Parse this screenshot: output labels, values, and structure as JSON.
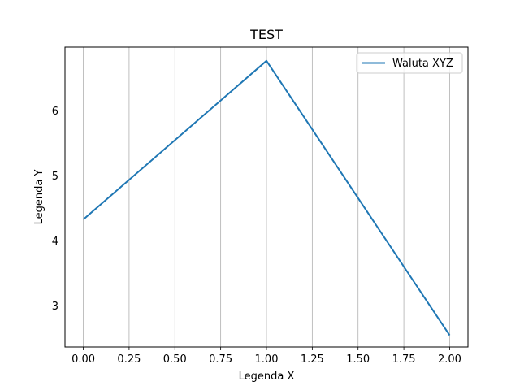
{
  "chart_data": {
    "type": "line",
    "title": "TEST",
    "xlabel": "Legenda X",
    "ylabel": "Legenda Y",
    "xlim": [
      -0.1,
      2.1
    ],
    "ylim": [
      2.37,
      6.98
    ],
    "xticks": [
      0.0,
      0.25,
      0.5,
      0.75,
      1.0,
      1.25,
      1.5,
      1.75,
      2.0
    ],
    "xtick_labels": [
      "0.00",
      "0.25",
      "0.50",
      "0.75",
      "1.00",
      "1.25",
      "1.50",
      "1.75",
      "2.00"
    ],
    "yticks": [
      3,
      4,
      5,
      6
    ],
    "ytick_labels": [
      "3",
      "4",
      "5",
      "6"
    ],
    "grid": true,
    "legend_position": "top-right",
    "series": [
      {
        "name": "Waluta XYZ",
        "color": "#1f77b4",
        "x": [
          0,
          1,
          2
        ],
        "y": [
          4.33,
          6.77,
          2.55
        ]
      }
    ]
  }
}
